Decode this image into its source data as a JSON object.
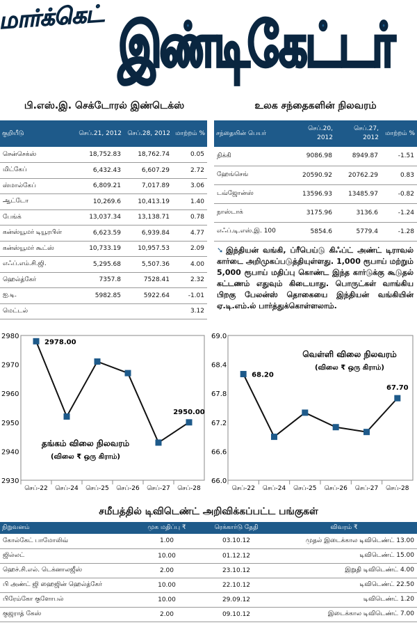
{
  "masthead": {
    "left": "மார்க்கெட்",
    "right": "இண்டிகேட்டர்"
  },
  "sector": {
    "title": "பி.எஸ்.இ. செக்டோரல் இண்டெக்ஸ்",
    "headers": [
      "குறியீடு",
      "செப்.21, 2012",
      "செப்.28, 2012",
      "மாற்றம் %"
    ],
    "rows": [
      [
        "சென்செக்ஸ்",
        "18,752.83",
        "18,762.74",
        "0.05"
      ],
      [
        "மிட்கேப்",
        "6,432.43",
        "6,607.29",
        "2.72"
      ],
      [
        "ஸ்மால்கேப்",
        "6,809.21",
        "7,017.89",
        "3.06"
      ],
      [
        "ஆட்டோ",
        "10,269.6",
        "10,413.19",
        "1.40"
      ],
      [
        "பேங்க்",
        "13,037.34",
        "13,138.71",
        "0.78"
      ],
      [
        "கன்ஸ்யூமர் டியூரபிள்",
        "6,623.59",
        "6,939.84",
        "4.77"
      ],
      [
        "கன்ஸ்யூமர் கூட்ஸ்",
        "10,733.19",
        "10,957.53",
        "2.09"
      ],
      [
        "எஃப்.எம்.சி.ஜி.",
        "5,295.68",
        "5,507.36",
        "4.00"
      ],
      [
        "ஹெல்த்கேர்",
        "7357.8",
        "7528.41",
        "2.32"
      ],
      [
        "ஐ.டி.",
        "5982.85",
        "5922.64",
        "-1.01"
      ],
      [
        "மெட்டல்",
        "",
        "",
        "3.12"
      ]
    ]
  },
  "world": {
    "title": "உலக சந்தைகளின் நிலவரம்",
    "headers": [
      "சந்தையின் பெயர்",
      "செப்.20, 2012",
      "செப்.27, 2012",
      "மாற்றம் %"
    ],
    "rows": [
      [
        "நிக்கி",
        "9086.98",
        "8949.87",
        "-1.51"
      ],
      [
        "ஹேங்செங்",
        "20590.92",
        "20762.29",
        "0.83"
      ],
      [
        "டவ்ஜோன்ஸ்",
        "13596.93",
        "13485.97",
        "-0.82"
      ],
      [
        "நாஸ்டாக்",
        "3175.96",
        "3136.6",
        "-1.24"
      ],
      [
        "எஃப்.டி.எஸ்.இ. 100",
        "5854.6",
        "5779.4",
        "-1.28"
      ]
    ]
  },
  "note": {
    "arrow": "➘",
    "text": "இந்தியன் வங்கி, ப்ரீபெய்டு கிஃப்ட் அண்ட் டிராவல் கார்டை அறிமுகப்படுத்தியுள்ளது. 1,000 ரூபாய் மற்றும் 5,000 ரூபாய் மதிப்பு கொண்ட இந்த கார்டுக்கு கூடுதல் கட்டணம் எதுவும் கிடையாது. பொருட்கள் வாங்கிய பிறகு பேலன்ஸ் தொகையை இந்தியன் வங்கியின் ஏ.டி.எம்.ல் பார்த்துக்கொள்ளலாம்."
  },
  "chart_data": [
    {
      "type": "line",
      "title": "தங்கம் விலை நிலவரம்",
      "subtitle": "(விலை ₹ ஒரு கிராம்)",
      "categories": [
        "செப்-22",
        "செப்-24",
        "செப்-25",
        "செப்-26",
        "செப்-27",
        "செப்-28"
      ],
      "values": [
        2978,
        2952,
        2971,
        2967,
        2943,
        2950
      ],
      "data_labels": [
        "2978.00",
        "",
        "",
        "",
        "",
        "2950.00"
      ],
      "yticks": [
        "2930",
        "2940",
        "2950",
        "2960",
        "2970",
        "2980"
      ],
      "ylim": [
        2930,
        2980
      ],
      "color": "#1e5a8a"
    },
    {
      "type": "line",
      "title": "வெள்ளி விலை நிலவரம்",
      "subtitle": "(விலை ₹ ஒரு கிராம்)",
      "categories": [
        "செப்-22",
        "செப்-24",
        "செப்-25",
        "செப்-26",
        "செப்-27",
        "செப்-28"
      ],
      "values": [
        68.2,
        66.9,
        67.4,
        67.1,
        67.0,
        67.7
      ],
      "data_labels": [
        "68.20",
        "",
        "",
        "",
        "",
        "67.70"
      ],
      "yticks": [
        "66.0",
        "66.6",
        "67.2",
        "67.8",
        "68.4",
        "69.0"
      ],
      "ylim": [
        66.0,
        69.0
      ],
      "color": "#1e5a8a"
    }
  ],
  "dividend": {
    "title": "சமீபத்தில் டிவிடெண்ட் அறிவிக்கப்பட்ட பங்குகள்",
    "headers": [
      "நிறுவனம்",
      "முக மதிப்பு ₹",
      "ரெக்கார்டு தேதி",
      "விவரம் ₹"
    ],
    "rows": [
      [
        "கோல்கேட் பாமோலிவ்",
        "1.00",
        "03.10.12",
        "முதல் இடைக்கால டிவிடெண்ட் 13.00"
      ],
      [
        "ஜில்லட்",
        "10.00",
        "01.12.12",
        "டிவிடெண்ட் 15.00"
      ],
      [
        "ஹெச்.சி.எல். டெக்னாலஜீஸ்",
        "2.00",
        "23.10.12",
        "இறுதி டிவிடெண்ட் 4.00"
      ],
      [
        "பி அண்ட் ஜி ஹைஜின் ஹெல்த்கேர்",
        "10.00",
        "22.10.12",
        "டிவிடெண்ட் 22.50"
      ],
      [
        "பிரேம்கோ குளோபல்",
        "10.00",
        "29.09.12",
        "டிவிடெண்ட் 1.20"
      ],
      [
        "குஜராத் கேஸ்",
        "2.00",
        "09.10.12",
        "இடைக்கால டிவிடெண்ட் 7.00"
      ]
    ]
  }
}
